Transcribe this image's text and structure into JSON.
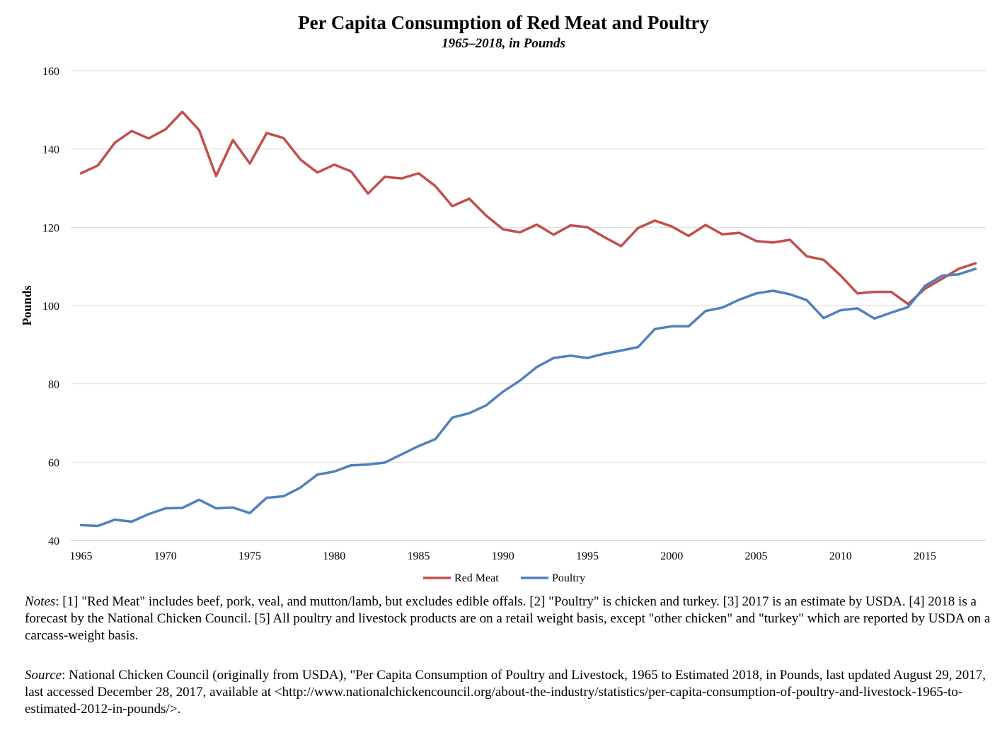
{
  "chart_data": {
    "type": "line",
    "title": "Per Capita Consumption of Red Meat and Poultry",
    "subtitle": "1965–2018, in Pounds",
    "xlabel": "",
    "ylabel": "Pounds",
    "ylim": [
      40,
      160
    ],
    "xlim": [
      1965,
      2018
    ],
    "yticks": [
      40,
      60,
      80,
      100,
      120,
      140,
      160
    ],
    "xticks": [
      1965,
      1970,
      1975,
      1980,
      1985,
      1990,
      1995,
      2000,
      2005,
      2010,
      2015
    ],
    "grid": true,
    "legend_position": "bottom-center",
    "x": [
      1965,
      1966,
      1967,
      1968,
      1969,
      1970,
      1971,
      1972,
      1973,
      1974,
      1975,
      1976,
      1977,
      1978,
      1979,
      1980,
      1981,
      1982,
      1983,
      1984,
      1985,
      1986,
      1987,
      1988,
      1989,
      1990,
      1991,
      1992,
      1993,
      1994,
      1995,
      1996,
      1997,
      1998,
      1999,
      2000,
      2001,
      2002,
      2003,
      2004,
      2005,
      2006,
      2007,
      2008,
      2009,
      2010,
      2011,
      2012,
      2013,
      2014,
      2015,
      2016,
      2017,
      2018
    ],
    "series": [
      {
        "name": "Red Meat",
        "color": "#c0504d",
        "values": [
          133.8,
          135.8,
          141.6,
          144.6,
          142.7,
          145.0,
          149.5,
          144.8,
          133.1,
          142.3,
          136.3,
          144.1,
          142.8,
          137.3,
          134.0,
          136.0,
          134.3,
          128.6,
          132.9,
          132.5,
          133.8,
          130.5,
          125.4,
          127.3,
          123.0,
          119.5,
          118.7,
          120.7,
          118.1,
          120.5,
          120.0,
          117.5,
          115.2,
          119.8,
          121.7,
          120.2,
          117.8,
          120.6,
          118.2,
          118.6,
          116.5,
          116.1,
          116.8,
          112.6,
          111.7,
          107.7,
          103.1,
          103.5,
          103.5,
          100.4,
          104.3,
          106.8,
          109.4,
          110.8
        ]
      },
      {
        "name": "Poultry",
        "color": "#4f81bd",
        "values": [
          43.9,
          43.7,
          45.3,
          44.8,
          46.7,
          48.2,
          48.3,
          50.4,
          48.2,
          48.4,
          47.0,
          50.9,
          51.3,
          53.5,
          56.8,
          57.6,
          59.2,
          59.4,
          59.9,
          62.0,
          64.1,
          65.9,
          71.4,
          72.5,
          74.5,
          78.0,
          80.8,
          84.3,
          86.6,
          87.2,
          86.6,
          87.7,
          88.5,
          89.4,
          94.0,
          94.7,
          94.7,
          98.6,
          99.5,
          101.5,
          103.1,
          103.8,
          102.9,
          101.4,
          96.8,
          98.8,
          99.3,
          96.7,
          98.2,
          99.6,
          105.0,
          107.6,
          108.0,
          109.4
        ]
      }
    ]
  },
  "notes": {
    "lead": "Notes",
    "text": ": [1] \"Red Meat\" includes beef, pork, veal, and mutton/lamb, but excludes edible offals.  [2] \"Poultry\" is chicken and turkey.  [3] 2017 is an estimate by USDA.  [4] 2018 is a forecast by the National Chicken Council.  [5] All poultry and livestock products are on a retail weight basis, except \"other chicken\" and \"turkey\" which are reported by USDA on a carcass-weight basis."
  },
  "source": {
    "lead": "Source",
    "text": ": National Chicken Council (originally from USDA), \"Per Capita Consumption of Poultry and Livestock, 1965 to Estimated 2018, in Pounds, last updated August 29, 2017, last accessed December 28, 2017, available at <http://www.nationalchickencouncil.org/about-the-industry/statistics/per-capita-consumption-of-poultry-and-livestock-1965-to-estimated-2012-in-pounds/>."
  }
}
